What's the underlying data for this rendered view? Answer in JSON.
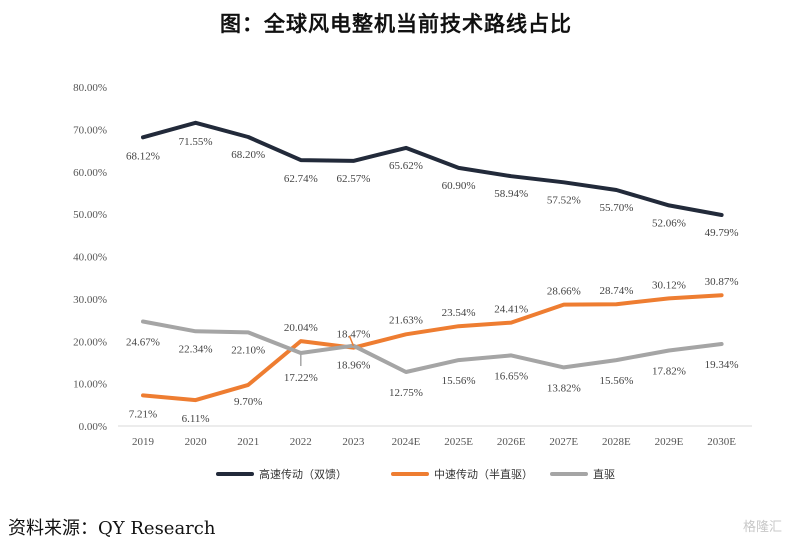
{
  "page": {
    "title": "图：全球风电整机当前技术路线占比",
    "source": "资料来源：QY Research",
    "watermark": "格隆汇"
  },
  "chart_data": {
    "type": "line",
    "title": "图：全球风电整机当前技术路线占比",
    "xlabel": "",
    "ylabel": "",
    "ylim": [
      0,
      80
    ],
    "yticks": [
      "0.00%",
      "10.00%",
      "20.00%",
      "30.00%",
      "40.00%",
      "50.00%",
      "60.00%",
      "70.00%",
      "80.00%"
    ],
    "grid": false,
    "legend_position": "bottom",
    "categories": [
      "2019",
      "2020",
      "2021",
      "2022",
      "2023",
      "2024E",
      "2025E",
      "2026E",
      "2027E",
      "2028E",
      "2029E",
      "2030E"
    ],
    "series": [
      {
        "name": "高速传动（双馈）",
        "color": "#222a3a",
        "values": [
          68.12,
          71.55,
          68.2,
          62.74,
          62.57,
          65.62,
          60.9,
          58.94,
          57.52,
          55.7,
          52.06,
          49.79
        ],
        "labels": [
          "68.12%",
          "71.55%",
          "68.20%",
          "62.74%",
          "62.57%",
          "65.62%",
          "60.90%",
          "58.94%",
          "57.52%",
          "55.70%",
          "52.06%",
          "49.79%"
        ]
      },
      {
        "name": "中速传动（半直驱）",
        "color": "#ee7d31",
        "values": [
          7.21,
          6.11,
          9.7,
          20.04,
          18.47,
          21.63,
          23.54,
          24.41,
          28.66,
          28.74,
          30.12,
          30.87
        ],
        "labels": [
          "7.21%",
          "6.11%",
          "9.70%",
          "20.04%",
          "18.47%",
          "21.63%",
          "23.54%",
          "24.41%",
          "28.66%",
          "28.74%",
          "30.12%",
          "30.87%"
        ]
      },
      {
        "name": "直驱",
        "color": "#a5a5a5",
        "values": [
          24.67,
          22.34,
          22.1,
          17.22,
          18.96,
          12.75,
          15.56,
          16.65,
          13.82,
          15.56,
          17.82,
          19.34
        ],
        "labels": [
          "24.67%",
          "22.34%",
          "22.10%",
          "17.22%",
          "18.96%",
          "12.75%",
          "15.56%",
          "16.65%",
          "13.82%",
          "15.56%",
          "17.82%",
          "19.34%"
        ]
      }
    ]
  }
}
